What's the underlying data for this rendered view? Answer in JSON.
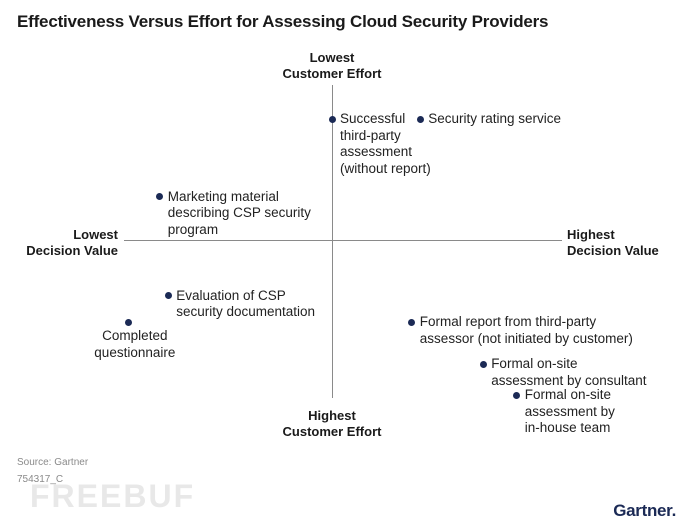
{
  "title": "Effectiveness Versus Effort for Assessing Cloud Security Providers",
  "chart_data": {
    "type": "scatter",
    "axes": {
      "top": [
        "Lowest",
        "Customer Effort"
      ],
      "bottom": [
        "Highest",
        "Customer Effort"
      ],
      "left": [
        "Lowest",
        "Decision Value"
      ],
      "right": [
        "Highest",
        "Decision Value"
      ]
    },
    "xlim": [
      -1,
      1
    ],
    "ylim": [
      -1,
      1
    ],
    "grid": false,
    "points": [
      {
        "label": [
          "Successful",
          "third-party",
          "assessment",
          "(without report)"
        ],
        "x": 0.0,
        "y": 0.78
      },
      {
        "label": [
          "Security rating service"
        ],
        "x": 0.42,
        "y": 0.78
      },
      {
        "label": [
          "Marketing material",
          "describing CSP security",
          "program"
        ],
        "x": -0.82,
        "y": 0.28
      },
      {
        "label": [
          "Evaluation of CSP",
          "security documentation"
        ],
        "x": -0.78,
        "y": -0.36
      },
      {
        "label": [
          "Completed",
          "questionnaire"
        ],
        "x": -0.97,
        "y": -0.53
      },
      {
        "label": [
          "Formal report from third-party",
          "assessor (not initiated by customer)"
        ],
        "x": 0.38,
        "y": -0.53
      },
      {
        "label": [
          "Formal on-site",
          "assessment by consultant"
        ],
        "x": 0.72,
        "y": -0.8
      },
      {
        "label": [
          "Formal on-site",
          "assessment by",
          "in-house team"
        ],
        "x": 0.88,
        "y": -1.0
      }
    ]
  },
  "footer": {
    "source": "Source: Gartner",
    "code": "754317_C",
    "brand": "Gartner",
    "watermark": "FREEBUF"
  },
  "colors": {
    "dot": "#1b2a55",
    "axis": "#8a8a8a",
    "brand": "#1b2a55"
  }
}
